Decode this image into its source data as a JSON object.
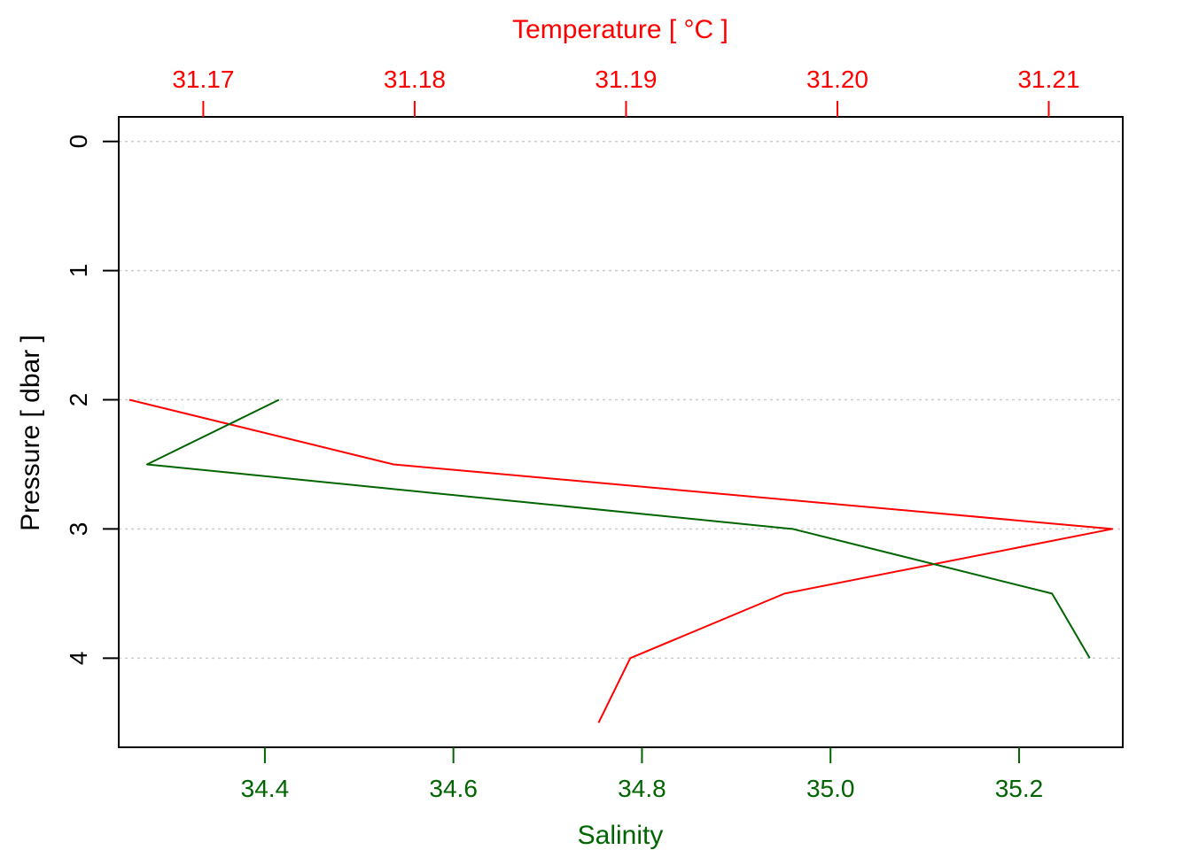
{
  "chart_data": {
    "type": "line",
    "title": "",
    "temperature_axis": {
      "label": "Temperature [ °C ]",
      "position": "top",
      "color": "#ff0000",
      "ticks": [
        "31.17",
        "31.18",
        "31.19",
        "31.20",
        "31.21"
      ],
      "range": [
        31.166,
        31.2135
      ]
    },
    "salinity_axis": {
      "label": "Salinity",
      "position": "bottom",
      "color": "#006400",
      "ticks": [
        "34.4",
        "34.6",
        "34.8",
        "35.0",
        "35.2"
      ],
      "range": [
        34.245,
        35.31
      ]
    },
    "pressure_axis": {
      "label": "Pressure [ dbar ]",
      "position": "left",
      "inverted": true,
      "ticks": [
        "0",
        "1",
        "2",
        "3",
        "4"
      ],
      "range": [
        -0.19,
        4.69
      ]
    },
    "grid": {
      "horizontal": true,
      "style": "dotted",
      "color": "#cccccc"
    },
    "series": [
      {
        "axis": "temperature",
        "color": "#ff0000",
        "points": [
          {
            "x": 31.1665,
            "y": 2.0
          },
          {
            "x": 31.179,
            "y": 2.5
          },
          {
            "x": 31.213,
            "y": 3.0
          },
          {
            "x": 31.1975,
            "y": 3.5
          },
          {
            "x": 31.1902,
            "y": 4.0
          },
          {
            "x": 31.1887,
            "y": 4.5
          }
        ]
      },
      {
        "axis": "salinity",
        "color": "#006400",
        "points": [
          {
            "x": 34.415,
            "y": 2.0
          },
          {
            "x": 34.275,
            "y": 2.5
          },
          {
            "x": 34.96,
            "y": 3.0
          },
          {
            "x": 35.235,
            "y": 3.5
          },
          {
            "x": 35.275,
            "y": 4.0
          }
        ]
      }
    ]
  }
}
